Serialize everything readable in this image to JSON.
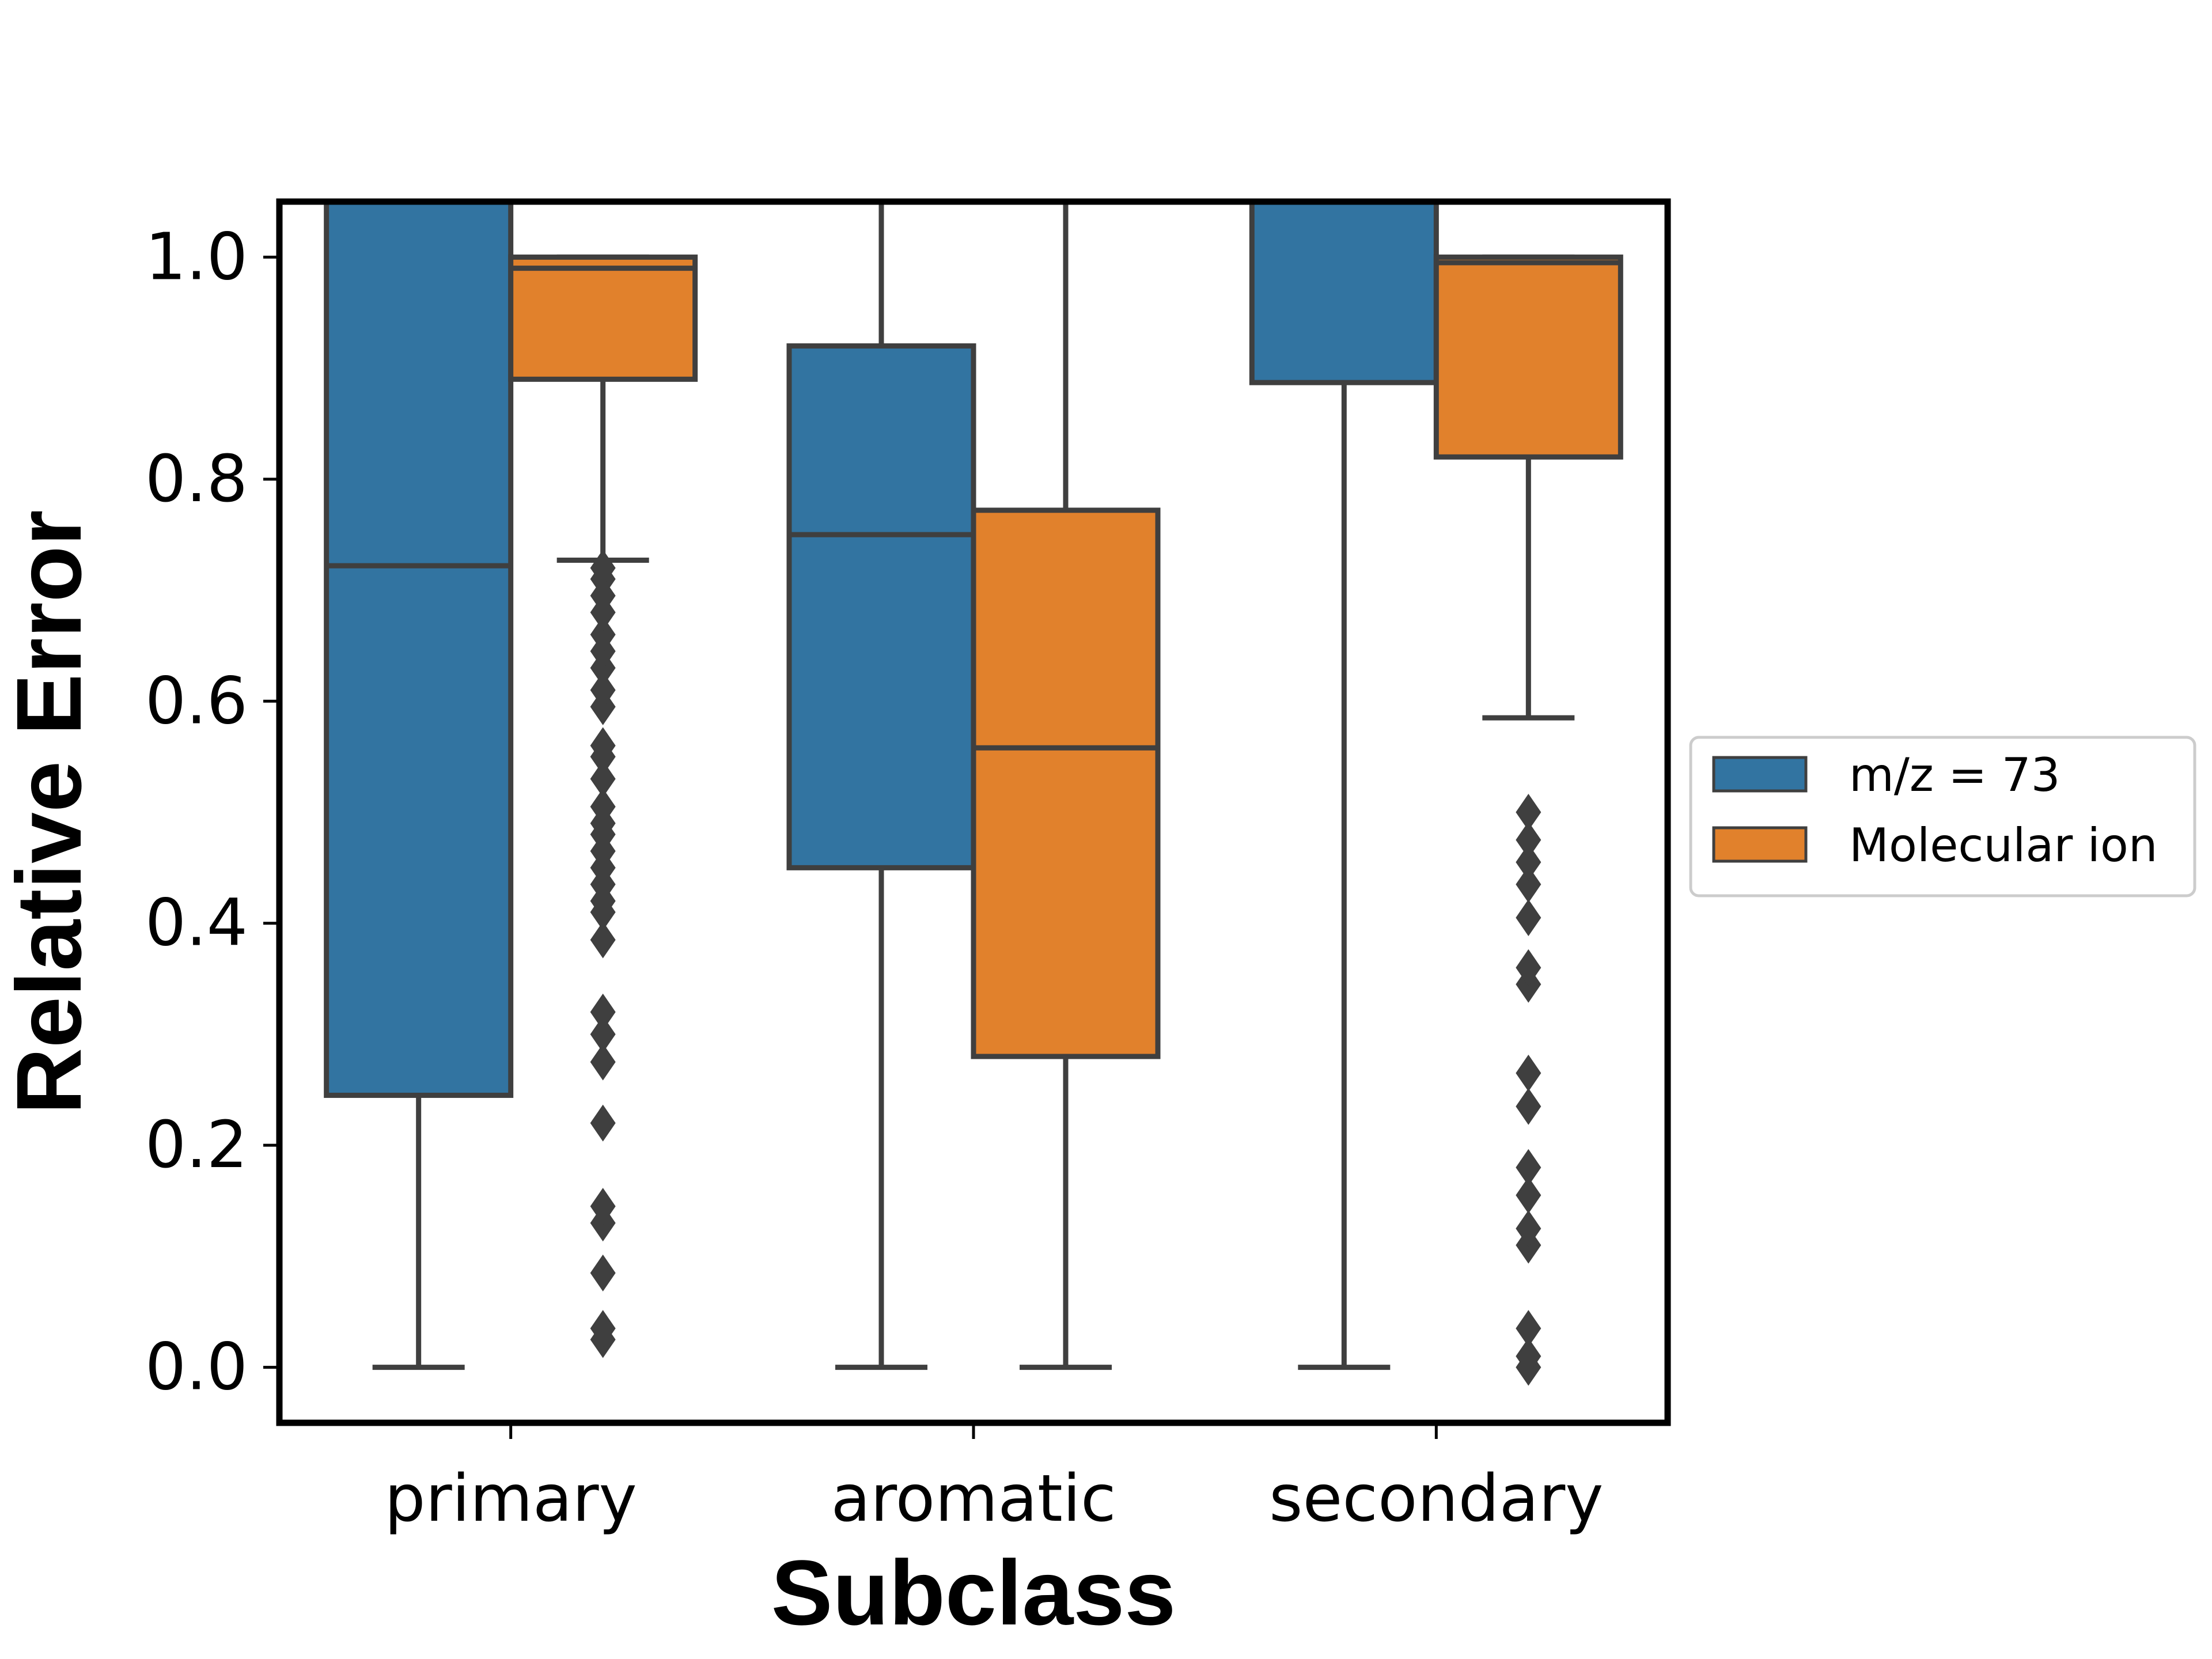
{
  "colors": {
    "m_z_73": "#3274a1",
    "molecular_ion": "#e1812c",
    "line": "#3f3f3f",
    "frame": "#000000",
    "legend_border": "#cccccc"
  },
  "chart_data": {
    "type": "box",
    "title": "",
    "xlabel": "Subclass",
    "ylabel": "Relative Error",
    "ylim": [
      -0.05,
      1.05
    ],
    "yticks": [
      "0.0",
      "0.2",
      "0.4",
      "0.6",
      "0.8",
      "1.0"
    ],
    "categories": [
      "primary",
      "aromatic",
      "secondary"
    ],
    "grid": false,
    "legend_position": "outside right",
    "series": [
      {
        "name": "m/z = 73",
        "boxes": [
          {
            "category": "primary",
            "whisker_low": 0.0,
            "q1": 0.245,
            "median": 0.722,
            "q3": 1.05,
            "whisker_high": 1.05,
            "outliers": []
          },
          {
            "category": "aromatic",
            "whisker_low": 0.0,
            "q1": 0.45,
            "median": 0.75,
            "q3": 0.92,
            "whisker_high": 1.05,
            "outliers": []
          },
          {
            "category": "secondary",
            "whisker_low": 0.0,
            "q1": 0.887,
            "median": 1.05,
            "q3": 1.05,
            "whisker_high": 1.05,
            "outliers": []
          }
        ]
      },
      {
        "name": "Molecular ion",
        "boxes": [
          {
            "category": "primary",
            "whisker_low": 0.727,
            "q1": 0.89,
            "median": 0.99,
            "q3": 1.0,
            "whisker_high": 1.0,
            "outliers": [
              0.025,
              0.035,
              0.085,
              0.13,
              0.145,
              0.22,
              0.275,
              0.3,
              0.32,
              0.385,
              0.41,
              0.42,
              0.435,
              0.45,
              0.465,
              0.48,
              0.49,
              0.505,
              0.53,
              0.55,
              0.56,
              0.595,
              0.61,
              0.63,
              0.645,
              0.66,
              0.68,
              0.695,
              0.71,
              0.72
            ]
          },
          {
            "category": "aromatic",
            "whisker_low": 0.0,
            "q1": 0.28,
            "median": 0.558,
            "q3": 0.772,
            "whisker_high": 1.05,
            "outliers": []
          },
          {
            "category": "secondary",
            "whisker_low": 0.585,
            "q1": 0.82,
            "median": 0.995,
            "q3": 1.0,
            "whisker_high": 1.0,
            "outliers": [
              0.0,
              0.01,
              0.035,
              0.11,
              0.125,
              0.155,
              0.18,
              0.235,
              0.265,
              0.345,
              0.36,
              0.405,
              0.435,
              0.455,
              0.475,
              0.5
            ]
          }
        ]
      }
    ]
  }
}
